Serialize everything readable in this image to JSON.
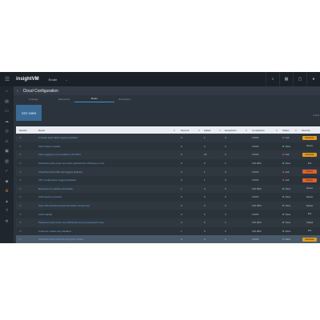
{
  "app": {
    "logo_prefix": "insight",
    "logo_suffix": "VM",
    "site_selector": "Erode",
    "hamburger_icon": "menu-icon"
  },
  "header": {
    "back_icon": "back-arrow-icon",
    "title": "Cloud Configuration",
    "page_indicator": "1 to 4"
  },
  "tabs": [
    {
      "label": "Findings"
    },
    {
      "label": "Resources"
    },
    {
      "label": "Rules"
    },
    {
      "label": "Exceptions"
    }
  ],
  "summary": {
    "rules_count": "121 rules"
  },
  "table": {
    "columns": [
      "Section",
      "Name",
      "Percent",
      "Failed",
      "Exceptions",
      "Compliance",
      "Status",
      "Severity"
    ],
    "rows": [
      {
        "name": "Console login failed logging disabled",
        "percent": "0",
        "failed": "1",
        "exceptions": "0",
        "compliance": "0.00%",
        "status": "Fail",
        "severity": "Moderate"
      },
      {
        "name": "IAM Instance update",
        "percent": "0",
        "failed": "0",
        "exceptions": "0",
        "compliance": "0.00%",
        "status": "Pass",
        "severity": "Severe"
      },
      {
        "name": "Flow Logging is not enabled in all VPCs",
        "percent": "0",
        "failed": "18",
        "exceptions": "0",
        "compliance": "0.00%",
        "status": "Fail",
        "severity": "Moderate"
      },
      {
        "name": "Password policy does not expire passwords in 90 days or less",
        "percent": "0",
        "failed": "0",
        "exceptions": "1",
        "compliance": "100.00%",
        "status": "Pass",
        "severity": "Info"
      },
      {
        "name": "CloudTrail with KMS call logging disabled",
        "percent": "0",
        "failed": "1",
        "exceptions": "0",
        "compliance": "0.00%",
        "status": "Fail",
        "severity": "Severe"
      },
      {
        "name": "VPC configuration logging disabled",
        "percent": "0",
        "failed": "1",
        "exceptions": "0",
        "compliance": "0.00%",
        "status": "Fail",
        "severity": "Severe"
      },
      {
        "name": "Resources is publicly accessible",
        "percent": "1",
        "failed": "0",
        "exceptions": "0",
        "compliance": "100.00%",
        "status": "Pass",
        "severity": "Severe"
      },
      {
        "name": "ALB insecure protocol",
        "percent": "0",
        "failed": "0",
        "exceptions": "0",
        "compliance": "0.00%",
        "status": "Pass",
        "severity": "Severe"
      },
      {
        "name": "User with console access has active access key",
        "percent": "0",
        "failed": "0",
        "exceptions": "0",
        "compliance": "100.00%",
        "status": "Pass",
        "severity": "Severe"
      },
      {
        "name": "ALB enabled",
        "percent": "0",
        "failed": "0",
        "exceptions": "0",
        "compliance": "0.00%",
        "status": "Pass",
        "severity": "Info"
      },
      {
        "name": "Password policy does not sufficiently prevent password reuse",
        "percent": "0",
        "failed": "0",
        "exceptions": "1",
        "compliance": "100.00%",
        "status": "Pass",
        "severity": "Critical"
      },
      {
        "name": "Customer master key disabled",
        "percent": "1",
        "failed": "0",
        "exceptions": "0",
        "compliance": "100.00%",
        "status": "Pass",
        "severity": "Info"
      },
      {
        "name": "CloudTrail with enforced encryption stores",
        "percent": "0",
        "failed": "0",
        "exceptions": "0",
        "compliance": "0.00%",
        "status": "Pass",
        "severity": "Moderate"
      }
    ]
  },
  "topbar_icons": [
    "search-icon",
    "apps-icon",
    "notifications-icon",
    "help-icon",
    "user-icon"
  ],
  "sidebar_icons": [
    "home-icon",
    "assets-icon",
    "cloud-icon",
    "scan-icon",
    "vulnerabilities-icon",
    "policies-icon",
    "reports-icon",
    "remediation-icon",
    "tags-icon",
    "automation-icon",
    "settings-icon"
  ]
}
